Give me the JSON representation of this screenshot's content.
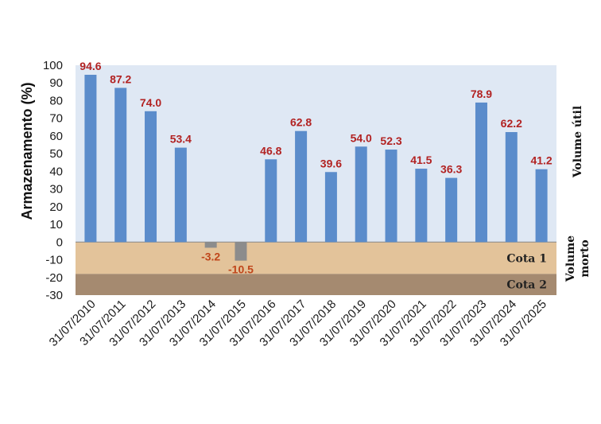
{
  "chart_data": {
    "type": "bar",
    "ylabel": "Armazenamento (%)",
    "ylim": [
      -30,
      100
    ],
    "yticks": [
      100,
      90,
      80,
      70,
      60,
      50,
      40,
      30,
      20,
      10,
      0,
      -10,
      -20,
      -30
    ],
    "categories": [
      "31/07/2010",
      "31/07/2011",
      "31/07/2012",
      "31/07/2013",
      "31/07/2014",
      "31/07/2015",
      "31/07/2016",
      "31/07/2017",
      "31/07/2018",
      "31/07/2019",
      "31/07/2020",
      "31/07/2021",
      "31/07/2022",
      "31/07/2023",
      "31/07/2024",
      "31/07/2025"
    ],
    "values": [
      94.6,
      87.2,
      74.0,
      53.4,
      -3.2,
      -10.5,
      46.8,
      62.8,
      39.6,
      54.0,
      52.3,
      41.5,
      36.3,
      78.9,
      62.2,
      41.2
    ],
    "data_labels": [
      "94.6",
      "87.2",
      "74.0",
      "53.4",
      "-3.2",
      "-10.5",
      "46.8",
      "62.8",
      "39.6",
      "54.0",
      "52.3",
      "41.5",
      "36.3",
      "78.9",
      "62.2",
      "41.2"
    ],
    "zones": [
      {
        "label": "Cota 1",
        "from": -18,
        "to": 0,
        "color": "#e3c39a"
      },
      {
        "label": "Cota 2",
        "from": -30,
        "to": -18,
        "color": "#a58a70"
      }
    ],
    "side_labels": {
      "upper": "Volume útil",
      "lower_line1": "Volume",
      "lower_line2": "morto"
    },
    "colors": {
      "positive_bar": "#5b8ccb",
      "negative_bar": "#8c8c8c",
      "positive_label": "#b22222",
      "negative_label": "#c0461b",
      "plot_background": "#dfe8f4"
    },
    "grid": false
  }
}
